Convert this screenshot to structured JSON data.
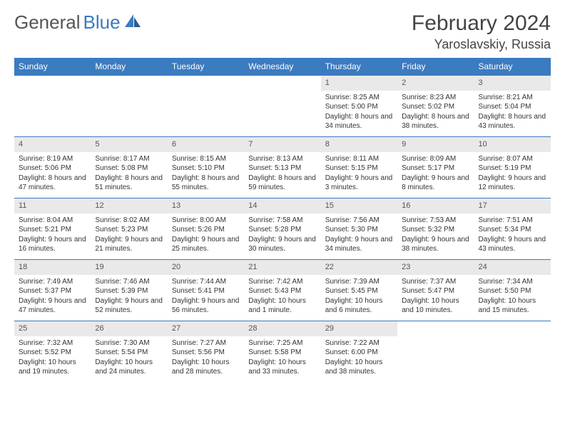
{
  "logo": {
    "text_gray": "General",
    "text_blue": "Blue"
  },
  "title": "February 2024",
  "location": "Yaroslavskiy, Russia",
  "colors": {
    "header_bg": "#3b7bbf",
    "header_text": "#ffffff",
    "daynum_bg": "#e9e9e9",
    "rule": "#3b7bbf",
    "body_text": "#333333"
  },
  "day_headers": [
    "Sunday",
    "Monday",
    "Tuesday",
    "Wednesday",
    "Thursday",
    "Friday",
    "Saturday"
  ],
  "weeks": [
    [
      {
        "n": "",
        "sr": "",
        "ss": "",
        "dl": ""
      },
      {
        "n": "",
        "sr": "",
        "ss": "",
        "dl": ""
      },
      {
        "n": "",
        "sr": "",
        "ss": "",
        "dl": ""
      },
      {
        "n": "",
        "sr": "",
        "ss": "",
        "dl": ""
      },
      {
        "n": "1",
        "sr": "Sunrise: 8:25 AM",
        "ss": "Sunset: 5:00 PM",
        "dl": "Daylight: 8 hours and 34 minutes."
      },
      {
        "n": "2",
        "sr": "Sunrise: 8:23 AM",
        "ss": "Sunset: 5:02 PM",
        "dl": "Daylight: 8 hours and 38 minutes."
      },
      {
        "n": "3",
        "sr": "Sunrise: 8:21 AM",
        "ss": "Sunset: 5:04 PM",
        "dl": "Daylight: 8 hours and 43 minutes."
      }
    ],
    [
      {
        "n": "4",
        "sr": "Sunrise: 8:19 AM",
        "ss": "Sunset: 5:06 PM",
        "dl": "Daylight: 8 hours and 47 minutes."
      },
      {
        "n": "5",
        "sr": "Sunrise: 8:17 AM",
        "ss": "Sunset: 5:08 PM",
        "dl": "Daylight: 8 hours and 51 minutes."
      },
      {
        "n": "6",
        "sr": "Sunrise: 8:15 AM",
        "ss": "Sunset: 5:10 PM",
        "dl": "Daylight: 8 hours and 55 minutes."
      },
      {
        "n": "7",
        "sr": "Sunrise: 8:13 AM",
        "ss": "Sunset: 5:13 PM",
        "dl": "Daylight: 8 hours and 59 minutes."
      },
      {
        "n": "8",
        "sr": "Sunrise: 8:11 AM",
        "ss": "Sunset: 5:15 PM",
        "dl": "Daylight: 9 hours and 3 minutes."
      },
      {
        "n": "9",
        "sr": "Sunrise: 8:09 AM",
        "ss": "Sunset: 5:17 PM",
        "dl": "Daylight: 9 hours and 8 minutes."
      },
      {
        "n": "10",
        "sr": "Sunrise: 8:07 AM",
        "ss": "Sunset: 5:19 PM",
        "dl": "Daylight: 9 hours and 12 minutes."
      }
    ],
    [
      {
        "n": "11",
        "sr": "Sunrise: 8:04 AM",
        "ss": "Sunset: 5:21 PM",
        "dl": "Daylight: 9 hours and 16 minutes."
      },
      {
        "n": "12",
        "sr": "Sunrise: 8:02 AM",
        "ss": "Sunset: 5:23 PM",
        "dl": "Daylight: 9 hours and 21 minutes."
      },
      {
        "n": "13",
        "sr": "Sunrise: 8:00 AM",
        "ss": "Sunset: 5:26 PM",
        "dl": "Daylight: 9 hours and 25 minutes."
      },
      {
        "n": "14",
        "sr": "Sunrise: 7:58 AM",
        "ss": "Sunset: 5:28 PM",
        "dl": "Daylight: 9 hours and 30 minutes."
      },
      {
        "n": "15",
        "sr": "Sunrise: 7:56 AM",
        "ss": "Sunset: 5:30 PM",
        "dl": "Daylight: 9 hours and 34 minutes."
      },
      {
        "n": "16",
        "sr": "Sunrise: 7:53 AM",
        "ss": "Sunset: 5:32 PM",
        "dl": "Daylight: 9 hours and 38 minutes."
      },
      {
        "n": "17",
        "sr": "Sunrise: 7:51 AM",
        "ss": "Sunset: 5:34 PM",
        "dl": "Daylight: 9 hours and 43 minutes."
      }
    ],
    [
      {
        "n": "18",
        "sr": "Sunrise: 7:49 AM",
        "ss": "Sunset: 5:37 PM",
        "dl": "Daylight: 9 hours and 47 minutes."
      },
      {
        "n": "19",
        "sr": "Sunrise: 7:46 AM",
        "ss": "Sunset: 5:39 PM",
        "dl": "Daylight: 9 hours and 52 minutes."
      },
      {
        "n": "20",
        "sr": "Sunrise: 7:44 AM",
        "ss": "Sunset: 5:41 PM",
        "dl": "Daylight: 9 hours and 56 minutes."
      },
      {
        "n": "21",
        "sr": "Sunrise: 7:42 AM",
        "ss": "Sunset: 5:43 PM",
        "dl": "Daylight: 10 hours and 1 minute."
      },
      {
        "n": "22",
        "sr": "Sunrise: 7:39 AM",
        "ss": "Sunset: 5:45 PM",
        "dl": "Daylight: 10 hours and 6 minutes."
      },
      {
        "n": "23",
        "sr": "Sunrise: 7:37 AM",
        "ss": "Sunset: 5:47 PM",
        "dl": "Daylight: 10 hours and 10 minutes."
      },
      {
        "n": "24",
        "sr": "Sunrise: 7:34 AM",
        "ss": "Sunset: 5:50 PM",
        "dl": "Daylight: 10 hours and 15 minutes."
      }
    ],
    [
      {
        "n": "25",
        "sr": "Sunrise: 7:32 AM",
        "ss": "Sunset: 5:52 PM",
        "dl": "Daylight: 10 hours and 19 minutes."
      },
      {
        "n": "26",
        "sr": "Sunrise: 7:30 AM",
        "ss": "Sunset: 5:54 PM",
        "dl": "Daylight: 10 hours and 24 minutes."
      },
      {
        "n": "27",
        "sr": "Sunrise: 7:27 AM",
        "ss": "Sunset: 5:56 PM",
        "dl": "Daylight: 10 hours and 28 minutes."
      },
      {
        "n": "28",
        "sr": "Sunrise: 7:25 AM",
        "ss": "Sunset: 5:58 PM",
        "dl": "Daylight: 10 hours and 33 minutes."
      },
      {
        "n": "29",
        "sr": "Sunrise: 7:22 AM",
        "ss": "Sunset: 6:00 PM",
        "dl": "Daylight: 10 hours and 38 minutes."
      },
      {
        "n": "",
        "sr": "",
        "ss": "",
        "dl": ""
      },
      {
        "n": "",
        "sr": "",
        "ss": "",
        "dl": ""
      }
    ]
  ]
}
